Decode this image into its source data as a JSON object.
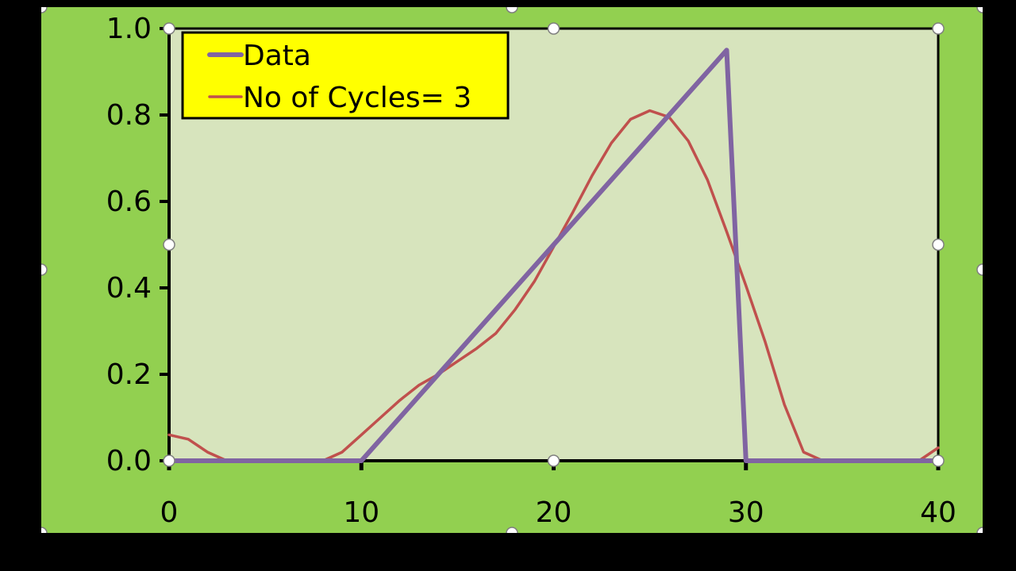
{
  "chart_data": {
    "type": "line",
    "xlim": [
      0,
      40
    ],
    "ylim": [
      0,
      1
    ],
    "x_ticks": [
      "0",
      "10",
      "20",
      "30",
      "40"
    ],
    "y_ticks": [
      "0.0",
      "0.2",
      "0.4",
      "0.6",
      "0.8",
      "1.0"
    ],
    "grid": false,
    "legend_position": "top-left",
    "series": [
      {
        "name": "Data",
        "color": "#8064a2",
        "points": [
          [
            0,
            0
          ],
          [
            10,
            0
          ],
          [
            29,
            0.95
          ],
          [
            30,
            0
          ],
          [
            40,
            0
          ]
        ]
      },
      {
        "name": "No of Cycles= 3",
        "color": "#c0504d",
        "points": [
          [
            0,
            0.06
          ],
          [
            1,
            0.05
          ],
          [
            2,
            0.02
          ],
          [
            3,
            0.0
          ],
          [
            4,
            0.0
          ],
          [
            5,
            0.0
          ],
          [
            6,
            0.0
          ],
          [
            7,
            0.0
          ],
          [
            8,
            0.0
          ],
          [
            9,
            0.02
          ],
          [
            10,
            0.06
          ],
          [
            11,
            0.1
          ],
          [
            12,
            0.14
          ],
          [
            13,
            0.175
          ],
          [
            14,
            0.2
          ],
          [
            15,
            0.23
          ],
          [
            16,
            0.26
          ],
          [
            17,
            0.295
          ],
          [
            18,
            0.35
          ],
          [
            19,
            0.415
          ],
          [
            20,
            0.495
          ],
          [
            21,
            0.575
          ],
          [
            22,
            0.66
          ],
          [
            23,
            0.735
          ],
          [
            24,
            0.79
          ],
          [
            25,
            0.81
          ],
          [
            26,
            0.795
          ],
          [
            27,
            0.74
          ],
          [
            28,
            0.65
          ],
          [
            29,
            0.53
          ],
          [
            30,
            0.405
          ],
          [
            31,
            0.275
          ],
          [
            32,
            0.13
          ],
          [
            33,
            0.02
          ],
          [
            34,
            0.0
          ],
          [
            35,
            0.0
          ],
          [
            36,
            0.0
          ],
          [
            37,
            0.0
          ],
          [
            38,
            0.0
          ],
          [
            39,
            0.0
          ],
          [
            40,
            0.03
          ]
        ]
      }
    ]
  }
}
